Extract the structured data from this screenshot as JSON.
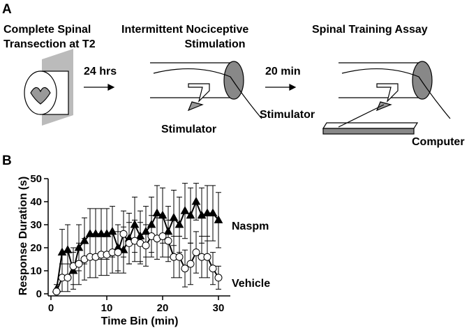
{
  "panel_a": {
    "label": "A",
    "step1": {
      "title_lines": [
        "Complete Spinal",
        "Transection at T2"
      ]
    },
    "arrow1": "24 hrs",
    "step2": {
      "title_lines": [
        "Intermittent Nociceptive",
        "Stimulation"
      ],
      "device": "Stimulator"
    },
    "arrow2": "20 min",
    "step3": {
      "title": "Spinal Training Assay",
      "device": "Stimulator",
      "computer": "Computer"
    }
  },
  "chart_data": {
    "type": "line",
    "panel_label": "B",
    "x_label": "Time Bin (min)",
    "y_label": "Response Duration (s)",
    "x": [
      1,
      2,
      3,
      4,
      5,
      6,
      7,
      8,
      9,
      10,
      11,
      12,
      13,
      14,
      15,
      16,
      17,
      18,
      19,
      20,
      21,
      22,
      23,
      24,
      25,
      26,
      27,
      28,
      29,
      30
    ],
    "series": [
      {
        "name": "Naspm",
        "color": "#000000",
        "marker": "triangle",
        "values": [
          2,
          18,
          19,
          10,
          20,
          23,
          26,
          26,
          26,
          26,
          27,
          20,
          19,
          24,
          30,
          25,
          27,
          30,
          35,
          34,
          27,
          33,
          30,
          36,
          34,
          40,
          34,
          35,
          35,
          32
        ],
        "errors": [
          2,
          10,
          11,
          8,
          10,
          10,
          11,
          11,
          11,
          11,
          11,
          10,
          10,
          11,
          12,
          11,
          11,
          12,
          12,
          12,
          11,
          12,
          12,
          12,
          12,
          8,
          12,
          12,
          12,
          12
        ]
      },
      {
        "name": "Vehicle",
        "color": "#000000",
        "marker": "circle",
        "values": [
          1,
          7,
          7,
          12,
          13,
          15,
          16,
          16,
          17,
          17,
          18,
          18,
          26,
          22,
          23,
          22,
          21,
          25,
          24,
          25,
          23,
          16,
          16,
          11,
          13,
          18,
          16,
          16,
          11,
          7
        ],
        "errors": [
          1,
          6,
          6,
          8,
          9,
          9,
          9,
          9,
          9,
          9,
          9,
          9,
          10,
          9,
          9,
          9,
          9,
          9,
          9,
          9,
          9,
          9,
          9,
          8,
          9,
          9,
          9,
          9,
          7,
          5
        ]
      }
    ],
    "xlim": [
      0,
      32
    ],
    "xticks": [
      0,
      10,
      20,
      30
    ],
    "ylim": [
      0,
      50
    ],
    "yticks": [
      0,
      10,
      20,
      30,
      40,
      50
    ]
  }
}
